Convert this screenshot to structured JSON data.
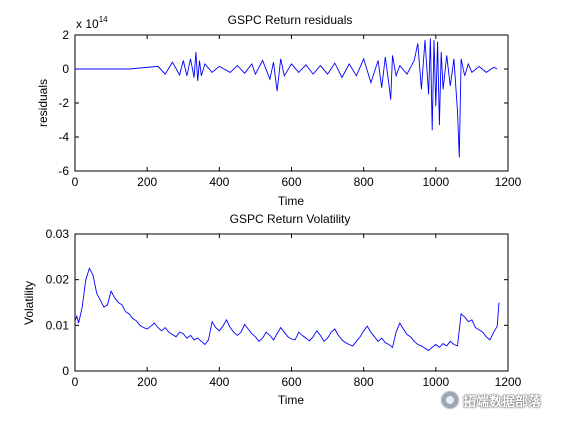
{
  "chart_data": [
    {
      "type": "line",
      "title": "GSPC Return residuals",
      "xlabel": "Time",
      "ylabel": "residuals",
      "xlim": [
        0,
        1200
      ],
      "ylim": [
        -6,
        2
      ],
      "xticks": [
        0,
        200,
        400,
        600,
        800,
        1000,
        1200
      ],
      "yticks": [
        -6,
        -4,
        -2,
        0,
        2
      ],
      "y_multiplier_base": "x 10",
      "y_multiplier_exponent": "14",
      "line_color": "#0000ff",
      "grid": false,
      "legend": "none",
      "x": [
        0,
        150,
        230,
        250,
        270,
        290,
        300,
        310,
        320,
        330,
        335,
        340,
        345,
        350,
        360,
        380,
        400,
        430,
        450,
        470,
        490,
        500,
        520,
        540,
        550,
        560,
        570,
        580,
        600,
        620,
        640,
        660,
        680,
        700,
        720,
        740,
        760,
        780,
        800,
        820,
        840,
        850,
        860,
        870,
        875,
        880,
        890,
        900,
        920,
        940,
        950,
        960,
        970,
        980,
        985,
        990,
        995,
        1000,
        1005,
        1010,
        1015,
        1020,
        1030,
        1040,
        1050,
        1060,
        1065,
        1070,
        1080,
        1090,
        1100,
        1120,
        1140,
        1160,
        1170
      ],
      "values": [
        0,
        0,
        0.15,
        -0.3,
        0.4,
        -0.35,
        0.5,
        -0.4,
        0.6,
        -0.5,
        1.0,
        -0.7,
        0.5,
        -0.4,
        0.3,
        -0.2,
        0.15,
        -0.2,
        0.2,
        -0.25,
        0.3,
        -0.3,
        0.5,
        -0.6,
        0.4,
        -1.3,
        0.6,
        -0.4,
        0.3,
        -0.2,
        0.25,
        -0.3,
        0.2,
        -0.3,
        0.35,
        -0.5,
        0.3,
        -0.4,
        0.6,
        -0.8,
        0.5,
        -1.1,
        0.7,
        -0.9,
        -1.8,
        0.8,
        -0.4,
        0.2,
        -0.3,
        0.5,
        1.5,
        -1.2,
        1.7,
        -1.5,
        1.8,
        -3.6,
        1.7,
        -2.2,
        1.6,
        -3.3,
        1.0,
        -1.2,
        0.8,
        -1.0,
        0.6,
        -2.5,
        -5.2,
        0.6,
        -0.4,
        0.3,
        -0.2,
        0.15,
        -0.2,
        0.1,
        0
      ]
    },
    {
      "type": "line",
      "title": "GSPC Return Volatility",
      "xlabel": "Time",
      "ylabel": "Volatility",
      "xlim": [
        0,
        1200
      ],
      "ylim": [
        0,
        0.03
      ],
      "xticks": [
        0,
        200,
        400,
        600,
        800,
        1000,
        1200
      ],
      "yticks": [
        0,
        0.01,
        0.02,
        0.03
      ],
      "ytick_labels": [
        "0",
        "0.01",
        "0.02",
        "0.03"
      ],
      "line_color": "#0000ff",
      "grid": false,
      "legend": "none",
      "x": [
        0,
        5,
        10,
        20,
        30,
        40,
        50,
        60,
        70,
        80,
        90,
        100,
        110,
        120,
        130,
        140,
        150,
        160,
        170,
        180,
        190,
        200,
        210,
        220,
        230,
        240,
        250,
        260,
        270,
        280,
        290,
        300,
        310,
        320,
        330,
        340,
        350,
        360,
        370,
        380,
        390,
        400,
        410,
        420,
        430,
        440,
        450,
        460,
        470,
        480,
        490,
        500,
        510,
        520,
        530,
        540,
        550,
        560,
        570,
        580,
        590,
        600,
        610,
        620,
        630,
        640,
        650,
        660,
        670,
        680,
        690,
        700,
        710,
        720,
        730,
        740,
        750,
        760,
        770,
        780,
        790,
        800,
        810,
        820,
        830,
        840,
        850,
        860,
        870,
        880,
        890,
        900,
        910,
        920,
        930,
        940,
        950,
        960,
        970,
        980,
        990,
        1000,
        1010,
        1020,
        1030,
        1040,
        1050,
        1060,
        1070,
        1080,
        1090,
        1100,
        1110,
        1120,
        1130,
        1140,
        1150,
        1160,
        1170,
        1175
      ],
      "values": [
        0.011,
        0.012,
        0.0105,
        0.014,
        0.02,
        0.0225,
        0.021,
        0.017,
        0.0155,
        0.014,
        0.0145,
        0.0175,
        0.016,
        0.015,
        0.0145,
        0.013,
        0.0125,
        0.0115,
        0.011,
        0.01,
        0.0095,
        0.0092,
        0.0098,
        0.0105,
        0.0095,
        0.0088,
        0.0095,
        0.0085,
        0.008,
        0.0075,
        0.0085,
        0.0082,
        0.0072,
        0.0078,
        0.0068,
        0.0072,
        0.0065,
        0.0058,
        0.0068,
        0.0108,
        0.0095,
        0.0088,
        0.0098,
        0.0112,
        0.0095,
        0.0085,
        0.0078,
        0.0085,
        0.0102,
        0.0092,
        0.0082,
        0.0075,
        0.0065,
        0.0072,
        0.0085,
        0.0078,
        0.0068,
        0.0082,
        0.0095,
        0.0085,
        0.0075,
        0.007,
        0.0068,
        0.0085,
        0.0078,
        0.0072,
        0.0066,
        0.0075,
        0.0088,
        0.0078,
        0.0065,
        0.0072,
        0.0085,
        0.0092,
        0.0078,
        0.0068,
        0.0062,
        0.0058,
        0.0055,
        0.0065,
        0.0075,
        0.0088,
        0.0098,
        0.0085,
        0.0075,
        0.0065,
        0.0072,
        0.0062,
        0.0058,
        0.0052,
        0.0085,
        0.0105,
        0.0092,
        0.008,
        0.0075,
        0.0065,
        0.0058,
        0.0055,
        0.005,
        0.0045,
        0.0052,
        0.0058,
        0.0052,
        0.006,
        0.0055,
        0.0065,
        0.0058,
        0.0055,
        0.0125,
        0.0118,
        0.0108,
        0.0112,
        0.0095,
        0.009,
        0.0085,
        0.0075,
        0.0068,
        0.0085,
        0.0098,
        0.015
      ]
    }
  ],
  "watermark": {
    "text": "拓端数据部落",
    "icon": "chat-bubble-icon"
  }
}
